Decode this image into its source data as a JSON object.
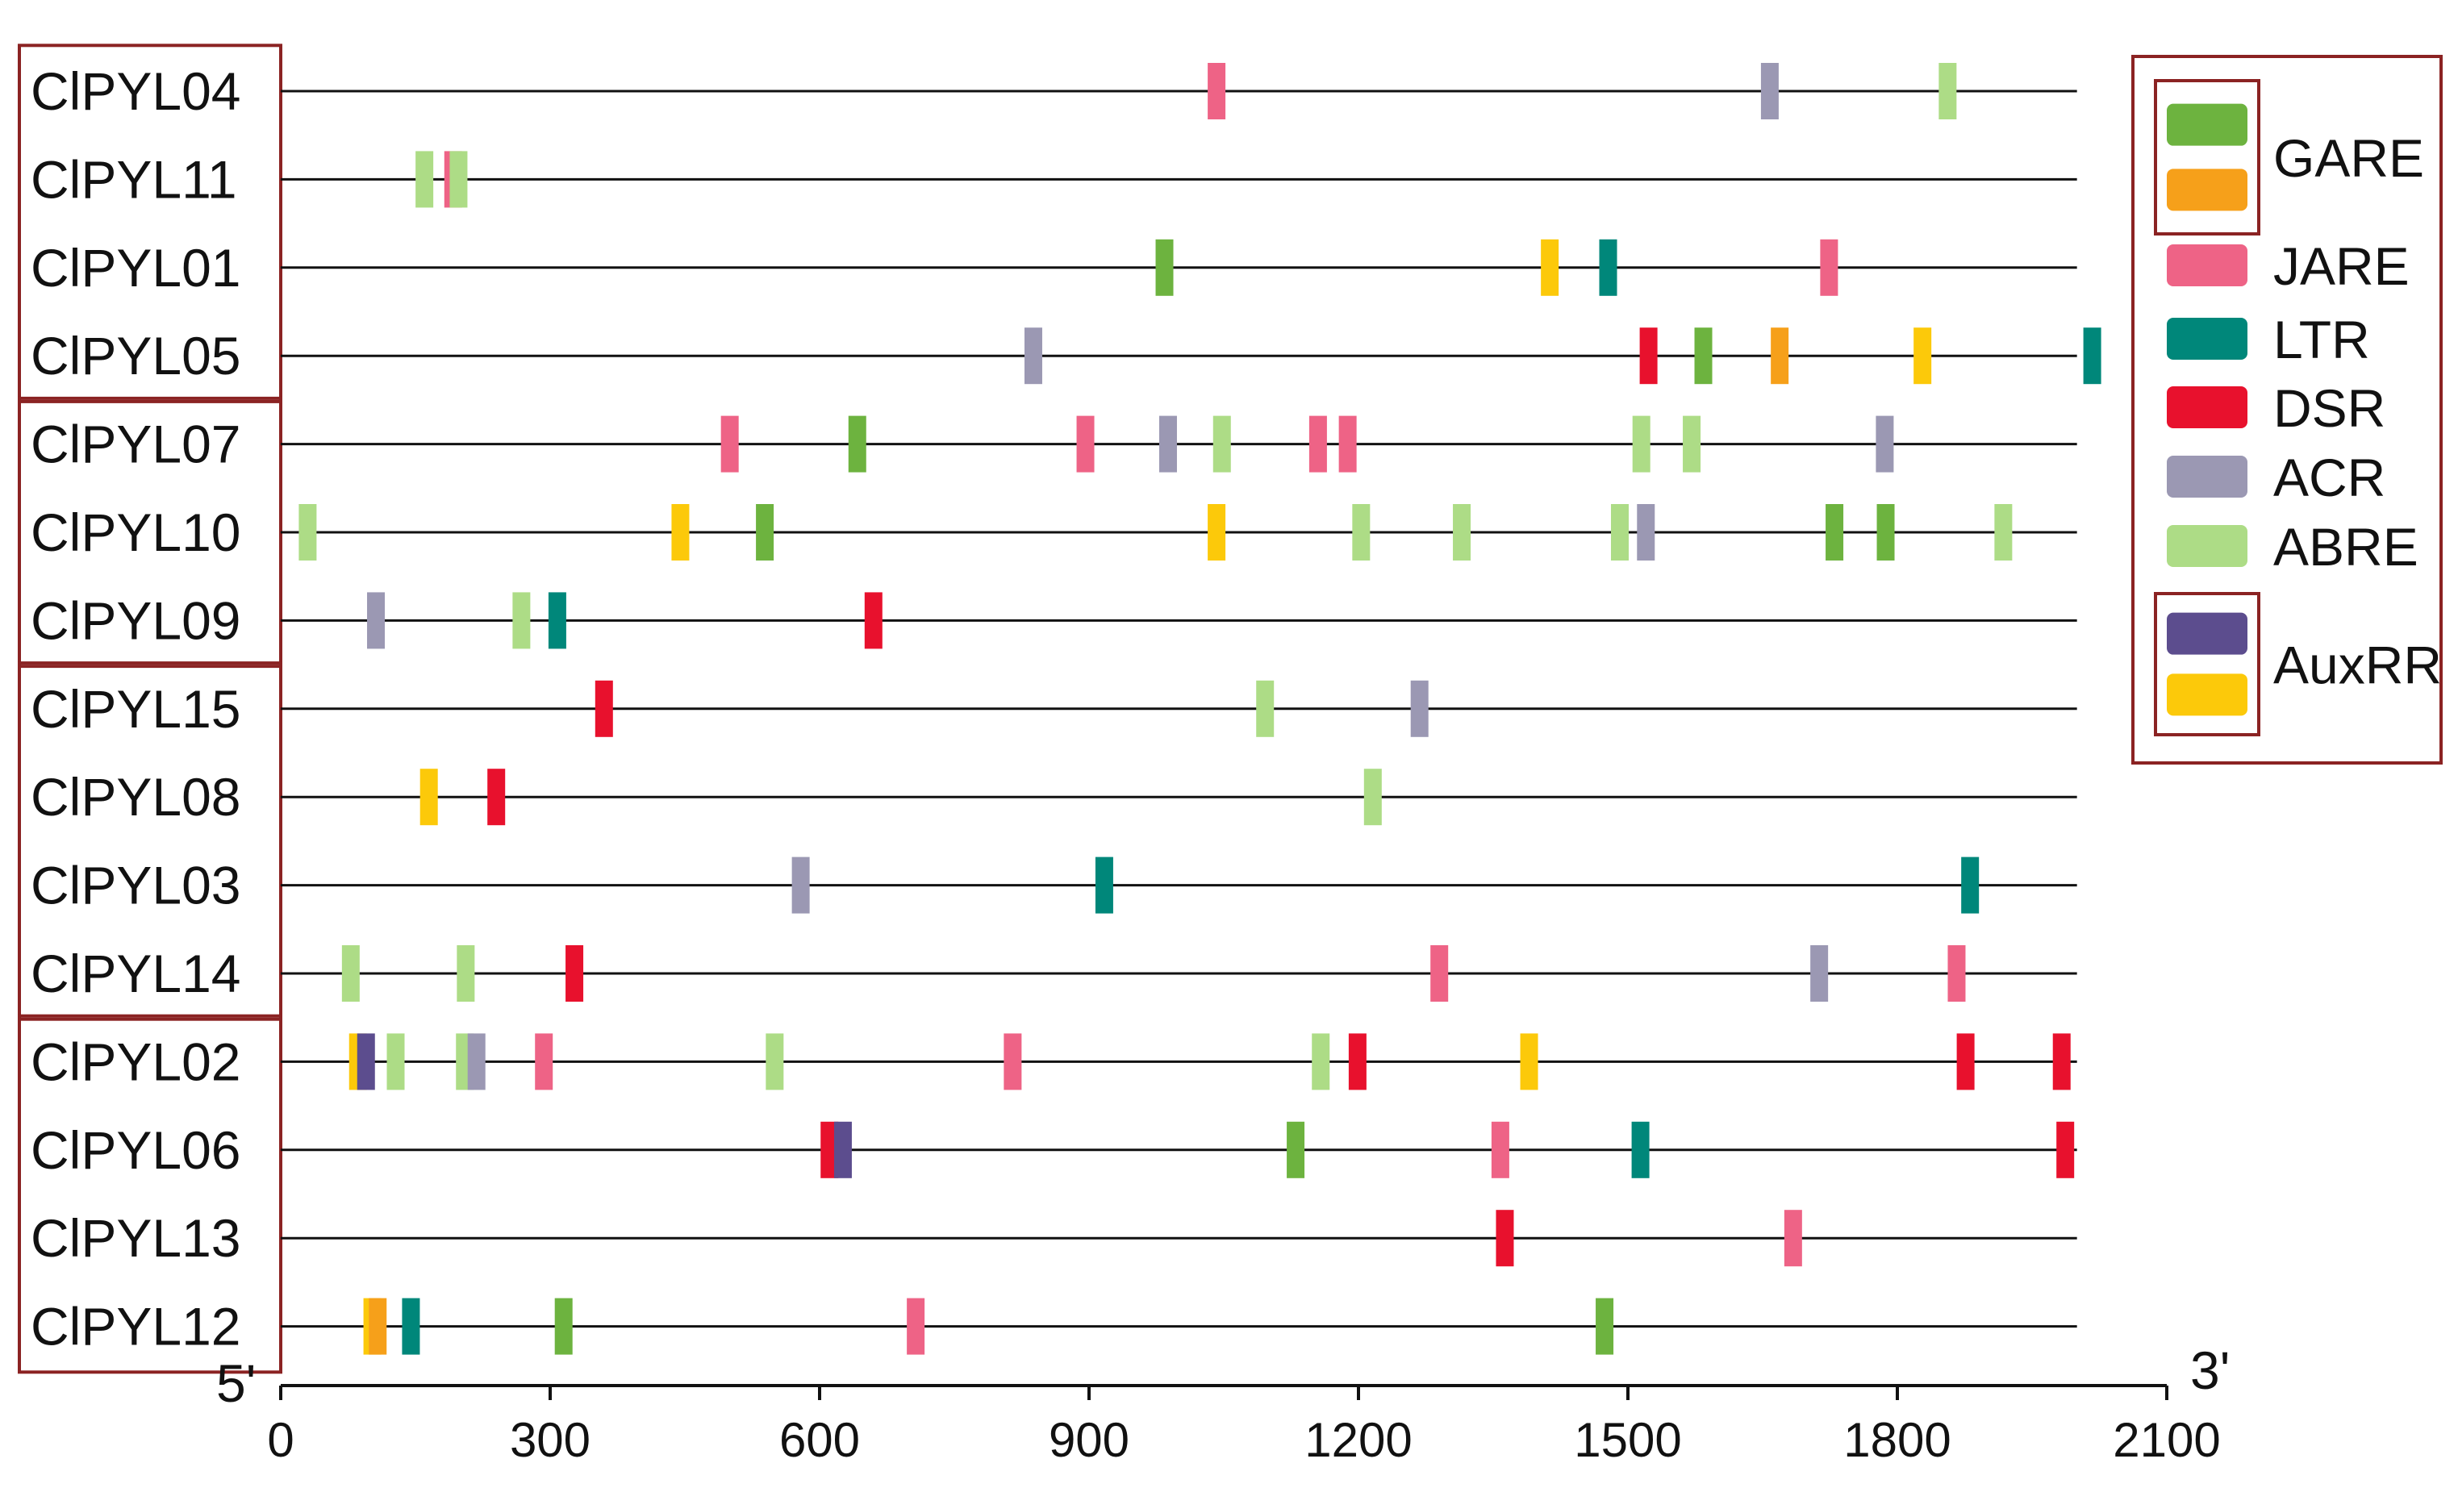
{
  "chart_data": {
    "type": "gene-element-map",
    "axis": {
      "start_label": "5'",
      "end_label": "3'",
      "range": [
        0,
        2100
      ],
      "ticks": [
        0,
        300,
        600,
        900,
        1200,
        1500,
        1800,
        2100
      ],
      "tick_labels": [
        "0",
        "300",
        "600",
        "900",
        "1200",
        "1500",
        "1800",
        "2100"
      ]
    },
    "elements": {
      "GARE_green": {
        "color": "#6db33f"
      },
      "GARE_orange": {
        "color": "#f6a01a"
      },
      "JARE": {
        "color": "#ee6386"
      },
      "LTR": {
        "color": "#00877a"
      },
      "DSR": {
        "color": "#e8112d"
      },
      "ACR": {
        "color": "#9b98b3"
      },
      "ABRE": {
        "color": "#addc86"
      },
      "AuxRR_purple": {
        "color": "#5c4d8e"
      },
      "AuxRR_yellow": {
        "color": "#fcc90a"
      }
    },
    "legend": {
      "placement": "right",
      "groups": [
        {
          "label": "GARE",
          "boxed": true,
          "swatches": [
            "GARE_green",
            "GARE_orange"
          ]
        },
        {
          "label": "JARE",
          "boxed": false,
          "swatches": [
            "JARE"
          ]
        },
        {
          "label": "LTR",
          "boxed": false,
          "swatches": [
            "LTR"
          ]
        },
        {
          "label": "DSR",
          "boxed": false,
          "swatches": [
            "DSR"
          ]
        },
        {
          "label": "ACR",
          "boxed": false,
          "swatches": [
            "ACR"
          ]
        },
        {
          "label": "ABRE",
          "boxed": false,
          "swatches": [
            "ABRE"
          ]
        },
        {
          "label": "AuxRR",
          "boxed": true,
          "swatches": [
            "AuxRR_purple",
            "AuxRR_yellow"
          ]
        }
      ]
    },
    "gene_groups": [
      [
        "ClPYL04",
        "ClPYL11",
        "ClPYL01",
        "ClPYL05"
      ],
      [
        "ClPYL07",
        "ClPYL10",
        "ClPYL09"
      ],
      [
        "ClPYL15",
        "ClPYL08",
        "ClPYL03",
        "ClPYL14"
      ],
      [
        "ClPYL02",
        "ClPYL06",
        "ClPYL13",
        "ClPYL12"
      ]
    ],
    "genes": [
      {
        "name": "ClPYL04",
        "length": 2000,
        "elements": [
          {
            "pos": 1042,
            "type": "JARE"
          },
          {
            "pos": 1658,
            "type": "ACR"
          },
          {
            "pos": 1856,
            "type": "ABRE"
          }
        ]
      },
      {
        "name": "ClPYL11",
        "length": 2000,
        "elements": [
          {
            "pos": 160,
            "type": "ABRE"
          },
          {
            "pos": 192,
            "type": "JARE"
          },
          {
            "pos": 198,
            "type": "ABRE"
          }
        ]
      },
      {
        "name": "ClPYL01",
        "length": 2000,
        "elements": [
          {
            "pos": 984,
            "type": "GARE_green"
          },
          {
            "pos": 1413,
            "type": "AuxRR_yellow"
          },
          {
            "pos": 1478,
            "type": "LTR"
          },
          {
            "pos": 1724,
            "type": "JARE"
          }
        ]
      },
      {
        "name": "ClPYL05",
        "length": 2000,
        "elements": [
          {
            "pos": 838,
            "type": "ACR"
          },
          {
            "pos": 1523,
            "type": "DSR"
          },
          {
            "pos": 1584,
            "type": "GARE_green"
          },
          {
            "pos": 1669,
            "type": "GARE_orange"
          },
          {
            "pos": 1828,
            "type": "AuxRR_yellow"
          },
          {
            "pos": 2017,
            "type": "LTR"
          }
        ]
      },
      {
        "name": "ClPYL07",
        "length": 2000,
        "elements": [
          {
            "pos": 500,
            "type": "JARE"
          },
          {
            "pos": 642,
            "type": "GARE_green"
          },
          {
            "pos": 896,
            "type": "JARE"
          },
          {
            "pos": 988,
            "type": "ACR"
          },
          {
            "pos": 1048,
            "type": "ABRE"
          },
          {
            "pos": 1155,
            "type": "JARE"
          },
          {
            "pos": 1188,
            "type": "JARE"
          },
          {
            "pos": 1515,
            "type": "ABRE"
          },
          {
            "pos": 1571,
            "type": "ABRE"
          },
          {
            "pos": 1786,
            "type": "ACR"
          }
        ]
      },
      {
        "name": "ClPYL10",
        "length": 2000,
        "elements": [
          {
            "pos": 30,
            "type": "ABRE"
          },
          {
            "pos": 445,
            "type": "AuxRR_yellow"
          },
          {
            "pos": 539,
            "type": "GARE_green"
          },
          {
            "pos": 1042,
            "type": "AuxRR_yellow"
          },
          {
            "pos": 1203,
            "type": "ABRE"
          },
          {
            "pos": 1315,
            "type": "ABRE"
          },
          {
            "pos": 1491,
            "type": "ABRE"
          },
          {
            "pos": 1520,
            "type": "ACR"
          },
          {
            "pos": 1730,
            "type": "GARE_green"
          },
          {
            "pos": 1787,
            "type": "GARE_green"
          },
          {
            "pos": 1918,
            "type": "ABRE"
          }
        ]
      },
      {
        "name": "ClPYL09",
        "length": 2000,
        "elements": [
          {
            "pos": 106,
            "type": "ACR"
          },
          {
            "pos": 268,
            "type": "ABRE"
          },
          {
            "pos": 308,
            "type": "LTR"
          },
          {
            "pos": 660,
            "type": "DSR"
          }
        ]
      },
      {
        "name": "ClPYL15",
        "length": 2000,
        "elements": [
          {
            "pos": 360,
            "type": "DSR"
          },
          {
            "pos": 1096,
            "type": "ABRE"
          },
          {
            "pos": 1268,
            "type": "ACR"
          }
        ]
      },
      {
        "name": "ClPYL08",
        "length": 2000,
        "elements": [
          {
            "pos": 165,
            "type": "AuxRR_yellow"
          },
          {
            "pos": 240,
            "type": "DSR"
          },
          {
            "pos": 1216,
            "type": "ABRE"
          }
        ]
      },
      {
        "name": "ClPYL03",
        "length": 2000,
        "elements": [
          {
            "pos": 579,
            "type": "ACR"
          },
          {
            "pos": 917,
            "type": "LTR"
          },
          {
            "pos": 1881,
            "type": "LTR"
          }
        ]
      },
      {
        "name": "ClPYL14",
        "length": 2000,
        "elements": [
          {
            "pos": 78,
            "type": "ABRE"
          },
          {
            "pos": 206,
            "type": "ABRE"
          },
          {
            "pos": 327,
            "type": "DSR"
          },
          {
            "pos": 1290,
            "type": "JARE"
          },
          {
            "pos": 1713,
            "type": "ACR"
          },
          {
            "pos": 1866,
            "type": "JARE"
          }
        ]
      },
      {
        "name": "ClPYL02",
        "length": 2000,
        "elements": [
          {
            "pos": 86,
            "type": "AuxRR_yellow"
          },
          {
            "pos": 95,
            "type": "AuxRR_purple"
          },
          {
            "pos": 128,
            "type": "ABRE"
          },
          {
            "pos": 205,
            "type": "ABRE"
          },
          {
            "pos": 218,
            "type": "ACR"
          },
          {
            "pos": 293,
            "type": "JARE"
          },
          {
            "pos": 550,
            "type": "ABRE"
          },
          {
            "pos": 815,
            "type": "JARE"
          },
          {
            "pos": 1158,
            "type": "ABRE"
          },
          {
            "pos": 1199,
            "type": "DSR"
          },
          {
            "pos": 1390,
            "type": "AuxRR_yellow"
          },
          {
            "pos": 1876,
            "type": "DSR"
          },
          {
            "pos": 1983,
            "type": "DSR"
          }
        ]
      },
      {
        "name": "ClPYL06",
        "length": 2000,
        "elements": [
          {
            "pos": 611,
            "type": "DSR"
          },
          {
            "pos": 626,
            "type": "AuxRR_purple"
          },
          {
            "pos": 1130,
            "type": "GARE_green"
          },
          {
            "pos": 1358,
            "type": "JARE"
          },
          {
            "pos": 1514,
            "type": "LTR"
          },
          {
            "pos": 1987,
            "type": "DSR"
          }
        ]
      },
      {
        "name": "ClPYL13",
        "length": 2000,
        "elements": [
          {
            "pos": 1363,
            "type": "DSR"
          },
          {
            "pos": 1684,
            "type": "JARE"
          }
        ]
      },
      {
        "name": "ClPYL12",
        "length": 2000,
        "elements": [
          {
            "pos": 102,
            "type": "AuxRR_yellow"
          },
          {
            "pos": 108,
            "type": "GARE_orange"
          },
          {
            "pos": 145,
            "type": "LTR"
          },
          {
            "pos": 315,
            "type": "GARE_green"
          },
          {
            "pos": 707,
            "type": "JARE"
          },
          {
            "pos": 1474,
            "type": "GARE_green"
          }
        ]
      }
    ]
  }
}
